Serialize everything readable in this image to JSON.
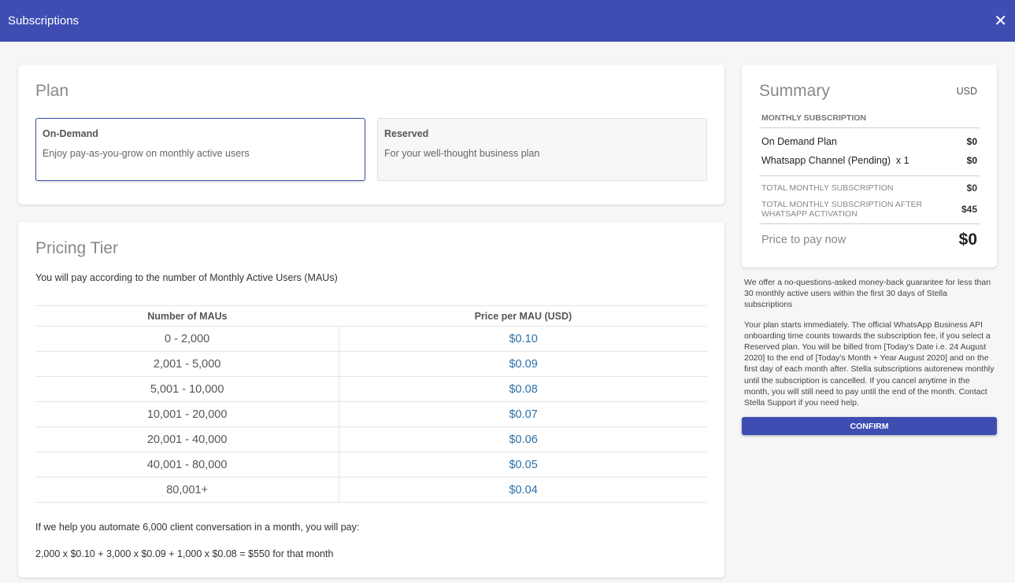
{
  "header": {
    "title": "Subscriptions",
    "close_icon": "close-icon"
  },
  "plan": {
    "title": "Plan",
    "options": [
      {
        "name": "On-Demand",
        "desc": "Enjoy pay-as-you-grow on monthly active users",
        "selected": true
      },
      {
        "name": "Reserved",
        "desc": "For your well-thought business plan",
        "selected": false
      }
    ]
  },
  "tier": {
    "title": "Pricing Tier",
    "intro": "You will pay according to the number of Monthly Active Users (MAUs)",
    "columns": [
      "Number of MAUs",
      "Price per MAU (USD)"
    ],
    "rows": [
      [
        "0 - 2,000",
        "$0.10"
      ],
      [
        "2,001 - 5,000",
        "$0.09"
      ],
      [
        "5,001 - 10,000",
        "$0.08"
      ],
      [
        "10,001 - 20,000",
        "$0.07"
      ],
      [
        "20,001 - 40,000",
        "$0.06"
      ],
      [
        "40,001 - 80,000",
        "$0.05"
      ],
      [
        "80,001+",
        "$0.04"
      ]
    ],
    "example": "If we help you automate 6,000 client conversation in a month, you will pay:",
    "formula": "2,000 x $0.10 + 3,000 x $0.09 + 1,000 x $0.08 = $550 for that month"
  },
  "summary": {
    "title": "Summary",
    "currency": "USD",
    "caption": "MONTHLY SUBSCRIPTION",
    "items": [
      {
        "label": "On Demand Plan",
        "value": "$0"
      },
      {
        "label": "Whatsapp Channel (Pending)  x 1",
        "value": "$0"
      }
    ],
    "totals": [
      {
        "label": "TOTAL MONTHLY SUBSCRIPTION",
        "value": "$0"
      },
      {
        "label": "TOTAL MONTHLY SUBSCRIPTION AFTER WHATSAPP ACTIVATION",
        "value": "$45"
      }
    ],
    "pay_label": "Price to pay now",
    "pay_value": "$0"
  },
  "notes": [
    "We offer a no-questions-asked money-back guarantee for less than 30 monthly active users within the first 30 days of Stella subscriptions",
    "Your plan starts immediately. The official WhatsApp Business API onboarding time counts towards the subscription fee, if you select a Reserved plan. You will be billed from [Today's Date i.e. 24 August 2020] to the end of [Today's Month + Year August 2020] and on the first day of each month after. Stella subscriptions autorenew monthly until the subscription is cancelled. If you cancel anytime in the month, you will still need to pay until the end of the month. Contact Stella Support if you need help."
  ],
  "confirm_label": "CONFIRM",
  "colors": {
    "primary": "#3f4db3",
    "price": "#2a6fa8"
  }
}
